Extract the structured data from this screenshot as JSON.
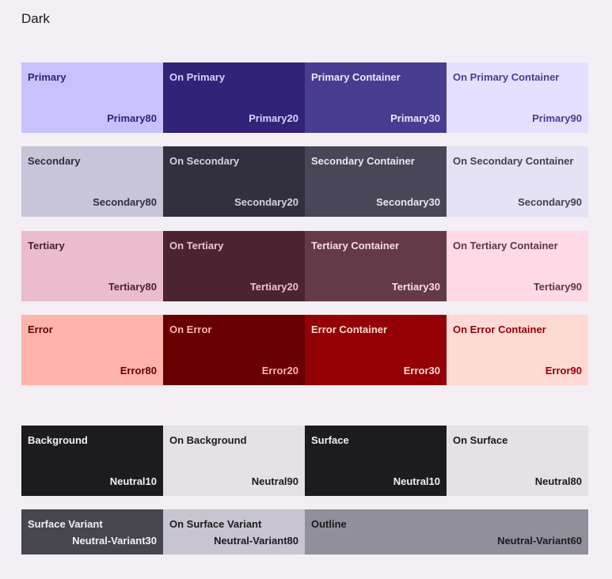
{
  "title": "Dark",
  "palette": {
    "primary": [
      {
        "name": "Primary",
        "tone": "Primary80",
        "bg": "#c7c2ff",
        "fg": "#2e2479"
      },
      {
        "name": "On Primary",
        "tone": "Primary20",
        "bg": "#302378",
        "fg": "#d6d1ff"
      },
      {
        "name": "Primary Container",
        "tone": "Primary30",
        "bg": "#483c91",
        "fg": "#ece8ff"
      },
      {
        "name": "On Primary Container",
        "tone": "Primary90",
        "bg": "#e5e0ff",
        "fg": "#4a3e93"
      }
    ],
    "secondary": [
      {
        "name": "Secondary",
        "tone": "Secondary80",
        "bg": "#c9c5d8",
        "fg": "#302f3d"
      },
      {
        "name": "On Secondary",
        "tone": "Secondary20",
        "bg": "#32303f",
        "fg": "#d4d0e0"
      },
      {
        "name": "Secondary Container",
        "tone": "Secondary30",
        "bg": "#484657",
        "fg": "#e9e6f2"
      },
      {
        "name": "On Secondary Container",
        "tone": "Secondary90",
        "bg": "#e6e2f5",
        "fg": "#44424f"
      }
    ],
    "tertiary": [
      {
        "name": "Tertiary",
        "tone": "Tertiary80",
        "bg": "#ebbbce",
        "fg": "#4a2433"
      },
      {
        "name": "On Tertiary",
        "tone": "Tertiary20",
        "bg": "#4b2331",
        "fg": "#ecc2d0"
      },
      {
        "name": "Tertiary Container",
        "tone": "Tertiary30",
        "bg": "#643a48",
        "fg": "#f7dce5"
      },
      {
        "name": "On Tertiary Container",
        "tone": "Tertiary90",
        "bg": "#ffd9e5",
        "fg": "#5e3644"
      }
    ],
    "error": [
      {
        "name": "Error",
        "tone": "Error80",
        "bg": "#ffb4a9",
        "fg": "#680003"
      },
      {
        "name": "On Error",
        "tone": "Error20",
        "bg": "#680003",
        "fg": "#ffb4a9"
      },
      {
        "name": "Error Container",
        "tone": "Error30",
        "bg": "#930006",
        "fg": "#ffdad4"
      },
      {
        "name": "On Error Container",
        "tone": "Error90",
        "bg": "#ffdad4",
        "fg": "#930006"
      }
    ],
    "neutral": [
      {
        "name": "Background",
        "tone": "Neutral10",
        "bg": "#1c1b1e",
        "fg": "#f2eff4"
      },
      {
        "name": "On Background",
        "tone": "Neutral90",
        "bg": "#e5e1e6",
        "fg": "#1c1b1e"
      },
      {
        "name": "Surface",
        "tone": "Neutral10",
        "bg": "#1c1b1e",
        "fg": "#f2eff4"
      },
      {
        "name": "On Surface",
        "tone": "Neutral80",
        "bg": "#e5e1e6",
        "fg": "#1c1b1e"
      }
    ],
    "variant": [
      {
        "name": "Surface Variant",
        "tone": "Neutral-Variant30",
        "bg": "#47464f",
        "fg": "#f2eff4"
      },
      {
        "name": "On Surface Variant",
        "tone": "Neutral-Variant80",
        "bg": "#c9c5d0",
        "fg": "#1c1b1e"
      },
      {
        "name": "Outline",
        "tone": "Neutral-Variant60",
        "bg": "#918f99",
        "fg": "#1c1b1e"
      }
    ]
  }
}
